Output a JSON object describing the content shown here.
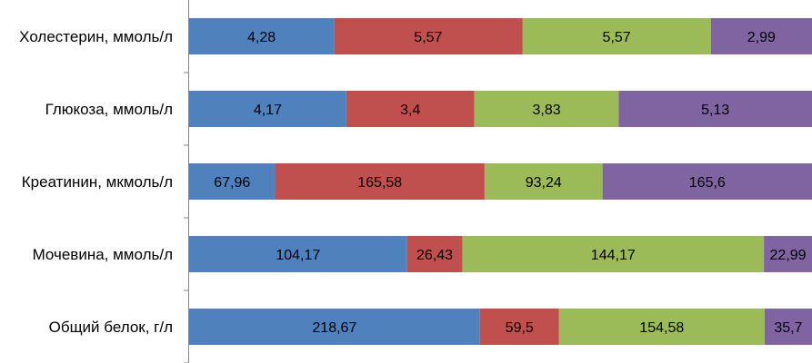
{
  "chart_data": {
    "type": "bar",
    "orientation": "horizontal",
    "stacked": "percent",
    "categories": [
      "Холестерин, ммоль/л",
      "Глюкоза, ммоль/л",
      "Креатинин, мкмоль/л",
      "Мочевина, ммоль/л",
      "Общий белок, г/л"
    ],
    "series": [
      {
        "color": "#4f81bd",
        "values": [
          4.28,
          4.17,
          67.96,
          104.17,
          218.67
        ],
        "labels": [
          "4,28",
          "4,17",
          "67,96",
          "104,17",
          "218,67"
        ]
      },
      {
        "color": "#c0504d",
        "values": [
          5.57,
          3.4,
          165.58,
          26.43,
          59.5
        ],
        "labels": [
          "5,57",
          "3,4",
          "165,58",
          "26,43",
          "59,5"
        ]
      },
      {
        "color": "#9bbb59",
        "values": [
          5.57,
          3.83,
          93.24,
          144.17,
          154.58
        ],
        "labels": [
          "5,57",
          "3,83",
          "93,24",
          "144,17",
          "154,58"
        ]
      },
      {
        "color": "#8064a2",
        "values": [
          2.99,
          5.13,
          165.6,
          22.99,
          35.7
        ],
        "labels": [
          "2,99",
          "5,13",
          "165,6",
          "22,99",
          "35,7"
        ]
      }
    ],
    "grid": false,
    "legend": "none"
  }
}
